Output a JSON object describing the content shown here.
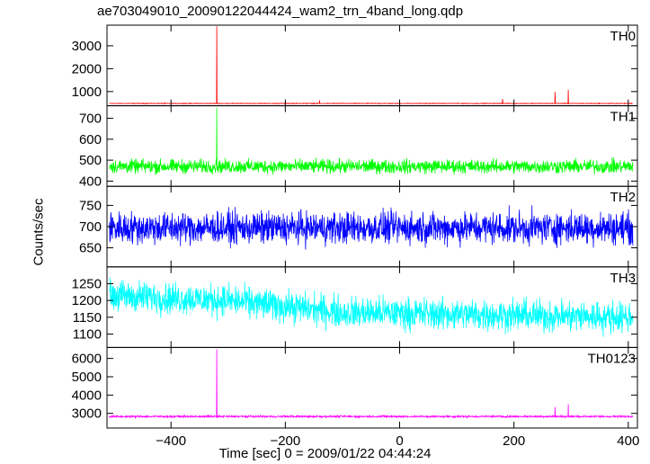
{
  "chart_data": {
    "type": "line",
    "title": "ae703049010_20090122044424_wam2_trn_4band_long.qdp",
    "xlabel": "Time [sec] 0 = 2009/01/22 04:44:24",
    "ylabel": "Counts/sec",
    "xlim": [
      -512,
      416
    ],
    "x_ticks": [
      -400,
      -200,
      0,
      200,
      400
    ],
    "x_tick_labels": [
      "−400",
      "−200",
      "0",
      "200",
      "400"
    ],
    "grid": false,
    "panels": [
      {
        "name": "TH0",
        "color": "#ff0000",
        "ylim": [
          380,
          3900
        ],
        "y_ticks": [
          1000,
          2000,
          3000
        ],
        "baseline": 480,
        "noise": 12,
        "spikes": [
          {
            "x": -320,
            "y": 3850
          },
          {
            "x": -140,
            "y": 620
          },
          {
            "x": 180,
            "y": 680
          },
          {
            "x": 272,
            "y": 980
          },
          {
            "x": 295,
            "y": 1080
          }
        ]
      },
      {
        "name": "TH1",
        "color": "#00ff00",
        "ylim": [
          375,
          760
        ],
        "y_ticks": [
          400,
          500,
          600,
          700
        ],
        "baseline": 470,
        "noise": 28,
        "spikes": [
          {
            "x": -320,
            "y": 750
          }
        ]
      },
      {
        "name": "TH2",
        "color": "#0000ff",
        "ylim": [
          605,
          795
        ],
        "y_ticks": [
          650,
          700,
          750
        ],
        "baseline": 697,
        "noise": 32,
        "spikes": []
      },
      {
        "name": "TH3",
        "color": "#00ffff",
        "ylim": [
          1060,
          1300
        ],
        "y_ticks": [
          1100,
          1150,
          1200,
          1250
        ],
        "baseline": 1165,
        "noise": 40,
        "trend": [
          {
            "x": -512,
            "y": 1215
          },
          {
            "x": -300,
            "y": 1200
          },
          {
            "x": -100,
            "y": 1165
          },
          {
            "x": 400,
            "y": 1150
          }
        ],
        "spikes": []
      },
      {
        "name": "TH0123",
        "color": "#ff00ff",
        "ylim": [
          2200,
          6600
        ],
        "y_ticks": [
          3000,
          4000,
          5000,
          6000
        ],
        "baseline": 2830,
        "noise": 45,
        "spikes": [
          {
            "x": -320,
            "y": 6500
          },
          {
            "x": 272,
            "y": 3350
          },
          {
            "x": 295,
            "y": 3500
          }
        ]
      }
    ]
  }
}
